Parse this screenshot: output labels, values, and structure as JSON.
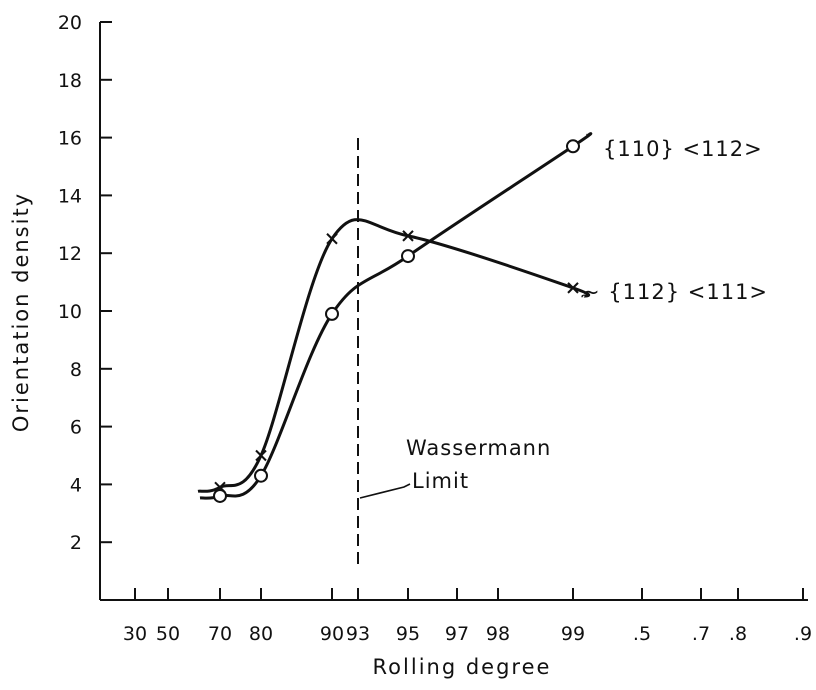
{
  "chart_data": {
    "type": "line",
    "xlabel": "Rolling degree",
    "ylabel": "Orientation density",
    "ylim": [
      0,
      20
    ],
    "y_ticks": [
      "2",
      "4",
      "6",
      "8",
      "10",
      "12",
      "14",
      "16",
      "18",
      "20"
    ],
    "x_tick_labels": [
      "30",
      "50",
      "70",
      "80",
      "90",
      "93",
      "95",
      "97",
      "98",
      "99",
      ".5",
      ".7",
      ".8",
      ".9"
    ],
    "x_scale": "rolling-degree (nonlinear, labelled ticks)",
    "grid": false,
    "series": [
      {
        "name": "{110} <112>",
        "marker": "circle",
        "x": [
          "70",
          "80",
          "90",
          "95",
          "99"
        ],
        "y": [
          3.6,
          4.3,
          9.9,
          11.9,
          15.7
        ]
      },
      {
        "name": "~ {112} <111>",
        "marker": "cross",
        "x": [
          "70",
          "80",
          "90",
          "95",
          "99"
        ],
        "y": [
          3.9,
          5.0,
          12.5,
          12.6,
          10.8
        ]
      }
    ],
    "reference_line": {
      "x": "93",
      "style": "dashed",
      "label_line1": "Wassermann",
      "label_line2": "Limit"
    }
  }
}
